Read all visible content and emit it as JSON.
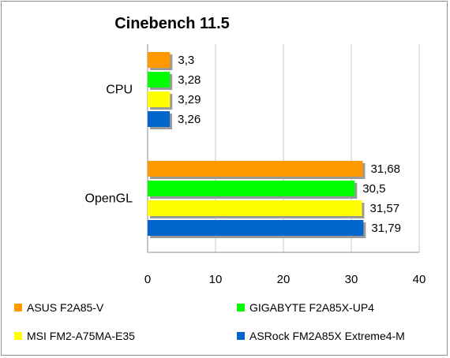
{
  "chart_data": {
    "type": "bar",
    "orientation": "horizontal",
    "title": "Cinebench 11.5",
    "categories": [
      "CPU",
      "OpenGL"
    ],
    "series": [
      {
        "name": "ASUS F2A85-V",
        "color": "#ff9900",
        "values": [
          3.3,
          31.68
        ],
        "labels": [
          "3,3",
          "31,68"
        ]
      },
      {
        "name": "GIGABYTE F2A85X-UP4",
        "color": "#00ff00",
        "values": [
          3.28,
          30.5
        ],
        "labels": [
          "3,28",
          "30,5"
        ]
      },
      {
        "name": "MSI FM2-A75MA-E35",
        "color": "#ffff00",
        "values": [
          3.29,
          31.57
        ],
        "labels": [
          "3,29",
          "31,57"
        ]
      },
      {
        "name": "ASRock FM2A85X Extreme4-M",
        "color": "#0066cc",
        "values": [
          3.26,
          31.79
        ],
        "labels": [
          "3,26",
          "31,79"
        ]
      }
    ],
    "xlim": [
      0,
      40
    ],
    "xticks": [
      "0",
      "10",
      "20",
      "30",
      "40"
    ],
    "grid": "vertical",
    "legend_position": "bottom"
  }
}
